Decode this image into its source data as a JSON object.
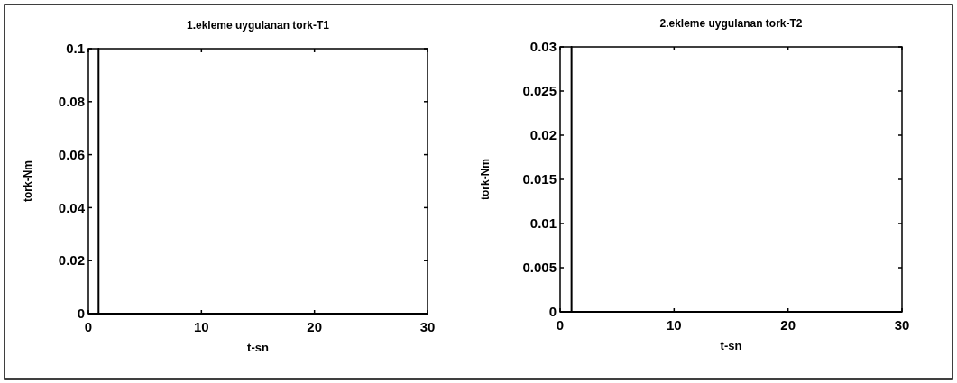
{
  "chart_data": [
    {
      "type": "line",
      "title": "1.ekleme uygulanan tork-T1",
      "xlabel": "t-sn",
      "ylabel": "tork-Nm",
      "x": [
        0,
        0.9,
        0.9,
        0.9,
        30
      ],
      "series": [
        {
          "color": "#000000",
          "values": [
            0,
            0,
            0.1,
            0,
            0
          ]
        }
      ],
      "xlim": [
        0,
        30
      ],
      "ylim": [
        0,
        0.1
      ],
      "xticks": [
        0,
        10,
        20,
        30
      ],
      "yticks": [
        0,
        0.02,
        0.04,
        0.06,
        0.08,
        0.1
      ]
    },
    {
      "type": "line",
      "title": "2.ekleme uygulanan tork-T2",
      "xlabel": "t-sn",
      "ylabel": "tork-Nm",
      "x": [
        0,
        1,
        1,
        1,
        30
      ],
      "series": [
        {
          "color": "#000000",
          "values": [
            0,
            0,
            0.03,
            0,
            0
          ]
        }
      ],
      "xlim": [
        0,
        30
      ],
      "ylim": [
        0,
        0.03
      ],
      "xticks": [
        0,
        10,
        20,
        30
      ],
      "yticks": [
        0,
        0.005,
        0.01,
        0.015,
        0.02,
        0.025,
        0.03
      ]
    }
  ]
}
